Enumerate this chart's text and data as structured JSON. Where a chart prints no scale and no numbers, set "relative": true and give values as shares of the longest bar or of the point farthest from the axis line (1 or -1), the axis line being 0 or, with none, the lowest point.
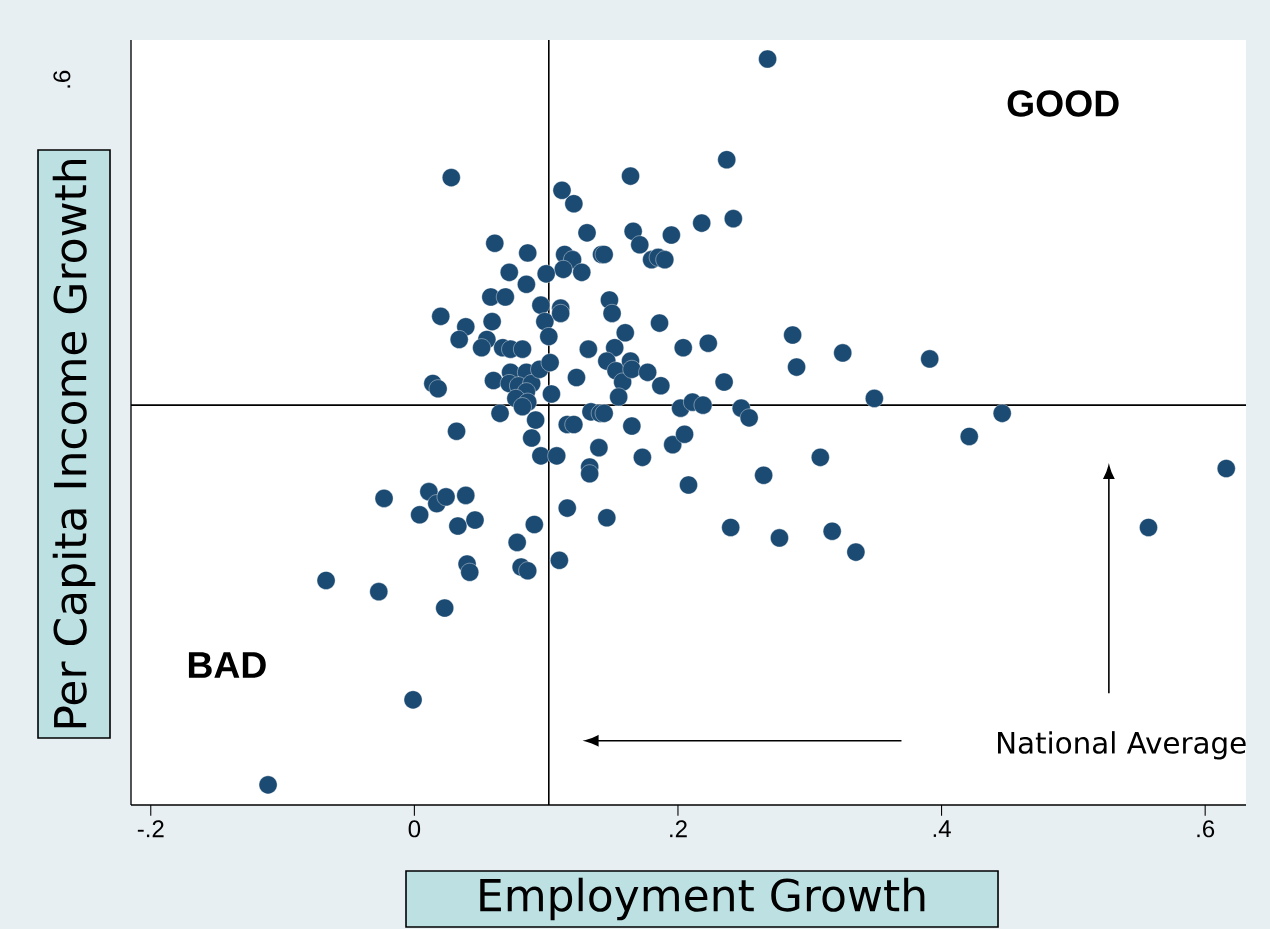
{
  "chart_data": {
    "type": "scatter",
    "xlabel": "Employment Growth",
    "ylabel": "Per Capita Income Growth",
    "annotations": [
      "GOOD",
      "BAD",
      "National Average",
      ".6"
    ],
    "relative": true,
    "x": [
      -0.111,
      -0.001,
      -0.067,
      -0.027,
      0.023,
      -0.023,
      0.011,
      0.004,
      0.017,
      0.024,
      0.039,
      0.033,
      0.046,
      0.04,
      0.042,
      0.032,
      0.014,
      0.018,
      0.028,
      0.02,
      0.039,
      0.034,
      0.058,
      0.069,
      0.059,
      0.061,
      0.072,
      0.086,
      0.085,
      0.055,
      0.051,
      0.067,
      0.073,
      0.082,
      0.06,
      0.073,
      0.085,
      0.072,
      0.079,
      0.089,
      0.095,
      0.085,
      0.077,
      0.086,
      0.082,
      0.065,
      0.092,
      0.089,
      0.096,
      0.103,
      0.104,
      0.108,
      0.091,
      0.078,
      0.081,
      0.086,
      0.11,
      0.116,
      0.116,
      0.121,
      0.123,
      0.132,
      0.112,
      0.121,
      0.114,
      0.12,
      0.113,
      0.127,
      0.1,
      0.096,
      0.099,
      0.102,
      0.111,
      0.111,
      0.131,
      0.142,
      0.144,
      0.148,
      0.15,
      0.16,
      0.152,
      0.146,
      0.153,
      0.158,
      0.155,
      0.134,
      0.141,
      0.144,
      0.14,
      0.133,
      0.133,
      0.146,
      0.164,
      0.166,
      0.171,
      0.18,
      0.185,
      0.19,
      0.186,
      0.164,
      0.165,
      0.177,
      0.187,
      0.165,
      0.173,
      0.196,
      0.195,
      0.218,
      0.237,
      0.242,
      0.204,
      0.223,
      0.235,
      0.202,
      0.211,
      0.219,
      0.205,
      0.208,
      0.268,
      0.248,
      0.254,
      0.265,
      0.24,
      0.277,
      0.287,
      0.29,
      0.325,
      0.308,
      0.317,
      0.335,
      0.349,
      0.391,
      0.421,
      0.446,
      0.557,
      0.616
    ],
    "values": [
      0.027,
      0.141,
      0.301,
      0.286,
      0.264,
      0.411,
      0.42,
      0.389,
      0.404,
      0.413,
      0.415,
      0.374,
      0.382,
      0.323,
      0.312,
      0.501,
      0.565,
      0.558,
      0.841,
      0.655,
      0.641,
      0.624,
      0.681,
      0.681,
      0.648,
      0.753,
      0.714,
      0.74,
      0.698,
      0.624,
      0.613,
      0.613,
      0.611,
      0.611,
      0.569,
      0.58,
      0.58,
      0.565,
      0.562,
      0.565,
      0.584,
      0.554,
      0.545,
      0.54,
      0.534,
      0.525,
      0.516,
      0.492,
      0.468,
      0.593,
      0.551,
      0.468,
      0.376,
      0.352,
      0.319,
      0.314,
      0.328,
      0.398,
      0.51,
      0.51,
      0.573,
      0.611,
      0.824,
      0.806,
      0.738,
      0.731,
      0.718,
      0.714,
      0.712,
      0.67,
      0.648,
      0.628,
      0.666,
      0.659,
      0.767,
      0.738,
      0.738,
      0.677,
      0.659,
      0.633,
      0.613,
      0.595,
      0.582,
      0.567,
      0.547,
      0.527,
      0.525,
      0.525,
      0.479,
      0.453,
      0.444,
      0.385,
      0.843,
      0.769,
      0.751,
      0.731,
      0.734,
      0.731,
      0.646,
      0.595,
      0.584,
      0.58,
      0.562,
      0.508,
      0.466,
      0.483,
      0.764,
      0.78,
      0.865,
      0.786,
      0.613,
      0.619,
      0.567,
      0.532,
      0.54,
      0.536,
      0.497,
      0.429,
      1,
      0.532,
      0.519,
      0.442,
      0.372,
      0.358,
      0.63,
      0.587,
      0.606,
      0.466,
      0.367,
      0.339,
      0.545,
      0.598,
      0.494,
      0.525,
      0.372,
      0.451
    ],
    "color": "#1b4a72",
    "marker": "circle",
    "xlim": [
      -0.215,
      0.631
    ],
    "xticks": [
      {
        "value": -0.2,
        "label": "-.2"
      },
      0,
      {
        "value": 0.2,
        "label": ".2"
      },
      {
        "value": 0.4,
        "label": ".4"
      },
      {
        "value": 0.6,
        "label": ".6"
      }
    ],
    "ref_lines": [
      {
        "axis": "x",
        "value": 0.102,
        "color": "#000000"
      },
      {
        "axis": "y",
        "value": 0.536,
        "color": "#000000"
      }
    ]
  }
}
